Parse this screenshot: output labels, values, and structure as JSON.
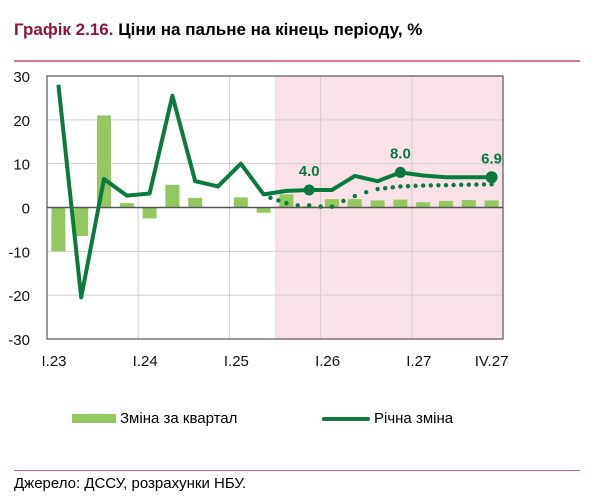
{
  "header": {
    "number": "Графік 2.16.",
    "title": "Ціни на пальне на кінець періоду, %"
  },
  "footer": {
    "source": "Джерело: ДССУ, розрахунки НБУ."
  },
  "colors": {
    "bar": "#92c85f",
    "line": "#0b7a3e",
    "forecast_bg": "#f9e1e8",
    "accent": "#8a1538",
    "rule": "#d07a8a"
  },
  "chart_data": {
    "type": "bar+line",
    "title": "Ціни на пальне на кінець періоду, %",
    "xlabel": "",
    "ylabel": "",
    "ylim": [
      -30,
      30
    ],
    "yticks": [
      "30",
      "20",
      "10",
      "0",
      "-10",
      "-20",
      "-30"
    ],
    "categories": [
      "I.23",
      "II.23",
      "III.23",
      "IV.23",
      "I.24",
      "II.24",
      "III.24",
      "IV.24",
      "I.25",
      "II.25",
      "III.25",
      "IV.25",
      "I.26",
      "II.26",
      "III.26",
      "IV.26",
      "I.27",
      "II.27",
      "III.27",
      "IV.27"
    ],
    "xtick_labels": [
      {
        "index": 0,
        "label": "I.23"
      },
      {
        "index": 4,
        "label": "I.24"
      },
      {
        "index": 8,
        "label": "I.25"
      },
      {
        "index": 12,
        "label": "I.26"
      },
      {
        "index": 16,
        "label": "I.27"
      },
      {
        "index": 19,
        "label": "IV.27"
      }
    ],
    "forecast_start_index": 10,
    "grid": true,
    "legend_position": "bottom",
    "series": [
      {
        "name": "Зміна за квартал",
        "type": "bar",
        "values": [
          -10,
          -6.5,
          21,
          1,
          -2.5,
          5.2,
          2.2,
          0,
          2.3,
          -1.2,
          3.0,
          0.3,
          1.9,
          1.9,
          1.6,
          1.8,
          1.2,
          1.5,
          1.7,
          1.6
        ]
      },
      {
        "name": "Річна зміна",
        "type": "line",
        "values": [
          28,
          -20.5,
          6.5,
          2.7,
          3.2,
          25.5,
          6,
          4.8,
          10,
          3,
          3.8,
          4.0,
          4.0,
          7.2,
          6,
          8.0,
          7.3,
          6.9,
          6.9,
          6.9
        ]
      },
      {
        "name": "",
        "type": "dotted-line",
        "x": [
          9.3,
          10,
          10.5,
          11,
          11.5,
          12,
          12.5,
          13,
          13.5,
          14,
          15,
          16,
          17,
          18,
          19
        ],
        "values": [
          2.2,
          1.0,
          0.5,
          0.5,
          0.2,
          0.2,
          1.5,
          2.6,
          3.5,
          4.2,
          4.8,
          5.0,
          5.1,
          5.2,
          5.3
        ]
      }
    ],
    "annotations": [
      {
        "index": 11,
        "label": "4.0"
      },
      {
        "index": 15,
        "label": "8.0"
      },
      {
        "index": 19,
        "label": "6.9"
      }
    ]
  }
}
